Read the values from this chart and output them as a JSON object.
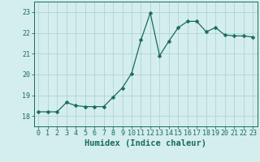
{
  "x": [
    0,
    1,
    2,
    3,
    4,
    5,
    6,
    7,
    8,
    9,
    10,
    11,
    12,
    13,
    14,
    15,
    16,
    17,
    18,
    19,
    20,
    21,
    22,
    23
  ],
  "y": [
    18.2,
    18.2,
    18.2,
    18.65,
    18.5,
    18.45,
    18.45,
    18.45,
    18.9,
    19.35,
    20.05,
    21.65,
    22.95,
    20.9,
    21.6,
    22.25,
    22.55,
    22.55,
    22.05,
    22.25,
    21.9,
    21.85,
    21.85,
    21.8
  ],
  "line_color": "#1a6b5a",
  "marker": "D",
  "marker_size": 2.5,
  "bg_color": "#d4eeed",
  "grid_color": "#b0d4d2",
  "axis_color": "#1a6b5a",
  "xlabel": "Humidex (Indice chaleur)",
  "xlim": [
    -0.5,
    23.5
  ],
  "ylim": [
    17.5,
    23.5
  ],
  "yticks": [
    18,
    19,
    20,
    21,
    22,
    23
  ],
  "xticks": [
    0,
    1,
    2,
    3,
    4,
    5,
    6,
    7,
    8,
    9,
    10,
    11,
    12,
    13,
    14,
    15,
    16,
    17,
    18,
    19,
    20,
    21,
    22,
    23
  ],
  "xlabel_fontsize": 7.5,
  "tick_fontsize": 6.0
}
